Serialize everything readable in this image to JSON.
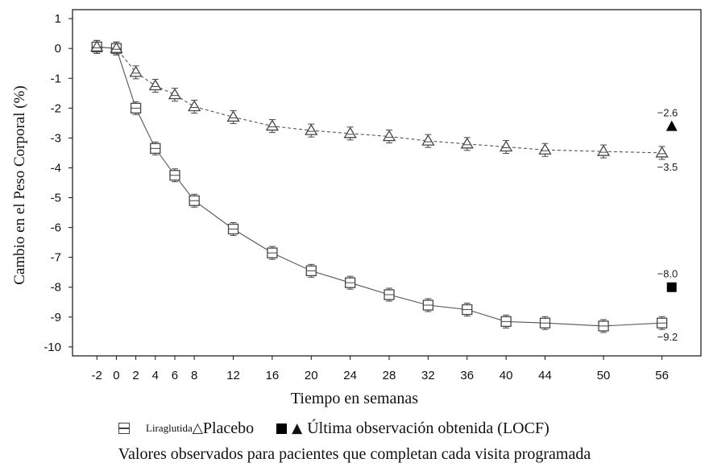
{
  "chart_data": {
    "type": "line",
    "xlabel": "Tiempo en semanas",
    "ylabel": "Cambio en el Peso Corporal (%)",
    "x": [
      -2,
      0,
      2,
      4,
      6,
      8,
      12,
      16,
      20,
      24,
      28,
      32,
      36,
      40,
      44,
      50,
      56
    ],
    "x_ticks": [
      -2,
      0,
      2,
      4,
      6,
      8,
      12,
      16,
      20,
      24,
      28,
      32,
      36,
      40,
      44,
      50,
      56
    ],
    "y_ticks": [
      1,
      0,
      -1,
      -2,
      -3,
      -4,
      -5,
      -6,
      -7,
      -8,
      -9,
      -10
    ],
    "ylim": [
      -10.3,
      1.3
    ],
    "xlim": [
      -4.5,
      60
    ],
    "grid": false,
    "series": [
      {
        "name": "Liraglutida",
        "marker": "open-square",
        "line": "solid",
        "values": [
          0.05,
          0,
          -2.0,
          -3.35,
          -4.25,
          -5.1,
          -6.05,
          -6.85,
          -7.45,
          -7.85,
          -8.25,
          -8.6,
          -8.75,
          -9.15,
          -9.2,
          -9.3,
          -9.2
        ]
      },
      {
        "name": "Placebo",
        "marker": "open-triangle",
        "line": "dashed",
        "values": [
          0.05,
          0,
          -0.8,
          -1.25,
          -1.55,
          -1.95,
          -2.3,
          -2.6,
          -2.75,
          -2.85,
          -2.95,
          -3.1,
          -3.2,
          -3.3,
          -3.4,
          -3.45,
          -3.5
        ]
      }
    ],
    "locf": {
      "x": 57,
      "liraglutida": -8.0,
      "placebo": -2.6
    },
    "end_labels": {
      "placebo_locf": "−2.6",
      "placebo_observed": "−3.5",
      "liraglutida_locf": "−8.0",
      "liraglutida_observed": "−9.2"
    }
  },
  "legend": {
    "liraglutida": "Liraglutida",
    "triangle_symbol": "△",
    "placebo": "Placebo",
    "filled_triangle_symbol": "▲",
    "locf": "Última observación obtenida (LOCF)"
  },
  "note": "Valores observados para pacientes que completan cada visita programada",
  "colors": {
    "line": "#555555",
    "marker": "#444444",
    "locf": "#000000",
    "axis": "#111111"
  }
}
